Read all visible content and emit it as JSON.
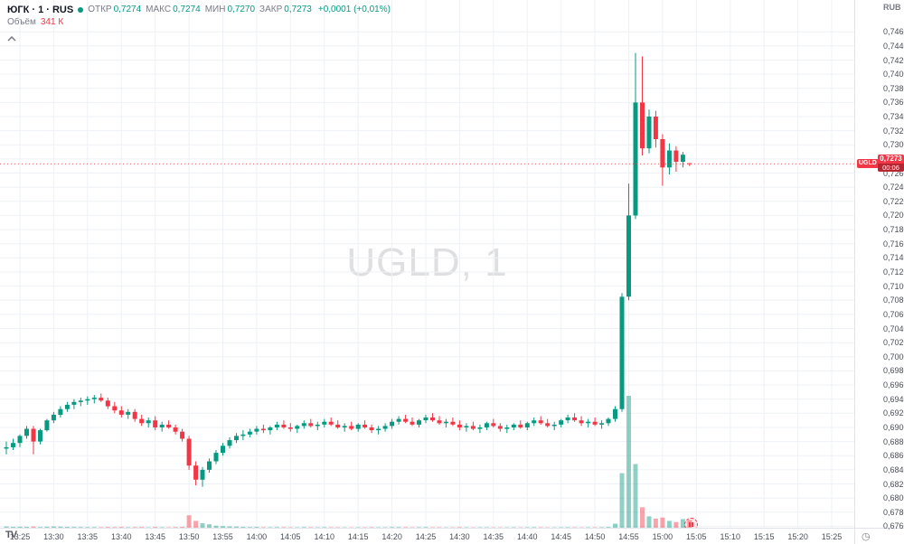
{
  "header": {
    "symbol_title": "ЮГК · 1 · RUS",
    "ohlc": {
      "open_label": "ОТКР",
      "open": "0,7274",
      "high_label": "МАКС",
      "high": "0,7274",
      "low_label": "МИН",
      "low": "0,7270",
      "close_label": "ЗАКР",
      "close": "0,7273",
      "change": "+0,0001 (+0,01%)"
    },
    "volume_label": "Объём",
    "volume_value": "341 К"
  },
  "watermark": "UGLD, 1",
  "branding": {
    "logo_text": "TV"
  },
  "icons": {
    "clock": "◷"
  },
  "price_tag": {
    "symbol": "UGLD",
    "price": "0,7273",
    "countdown": "00:06",
    "color": "#f23645"
  },
  "chart_data": {
    "type": "candlestick",
    "title": "UGLD, 1",
    "symbol": "UGLD",
    "interval": "1",
    "currency": "RUB",
    "ylim": [
      0.6758,
      0.7505
    ],
    "grid": true,
    "colors": {
      "up": "#089981",
      "down": "#f23645"
    },
    "y_ticks": [
      "0,7460",
      "0,7440",
      "0,7420",
      "0,7400",
      "0,7380",
      "0,7360",
      "0,7340",
      "0,7320",
      "0,7300",
      "0,7280",
      "0,7260",
      "0,7240",
      "0,7220",
      "0,7200",
      "0,7180",
      "0,7160",
      "0,7140",
      "0,7120",
      "0,7100",
      "0,7080",
      "0,7060",
      "0,7040",
      "0,7020",
      "0,7000",
      "0,6980",
      "0,6960",
      "0,6940",
      "0,6920",
      "0,6900",
      "0,6880",
      "0,6860",
      "0,6840",
      "0,6820",
      "0,6800",
      "0,6780",
      "0,6760"
    ],
    "x_ticks": [
      "13:25",
      "13:30",
      "13:35",
      "13:40",
      "13:45",
      "13:50",
      "13:55",
      "14:00",
      "14:05",
      "14:10",
      "14:15",
      "14:20",
      "14:25",
      "14:30",
      "14:35",
      "14:40",
      "14:45",
      "14:50",
      "14:55",
      "15:00",
      "15:05",
      "15:10",
      "15:15",
      "15:20",
      "15:25"
    ],
    "columns": [
      "time",
      "open",
      "high",
      "low",
      "close",
      "volume"
    ],
    "last_price": 0.7273,
    "candles": [
      [
        "13:23",
        0.687,
        0.688,
        0.6862,
        0.6872,
        50000
      ],
      [
        "13:24",
        0.6872,
        0.6884,
        0.6868,
        0.6878,
        40000
      ],
      [
        "13:25",
        0.6878,
        0.689,
        0.6872,
        0.6888,
        45000
      ],
      [
        "13:26",
        0.6888,
        0.6902,
        0.6884,
        0.6898,
        38000
      ],
      [
        "13:27",
        0.6898,
        0.6902,
        0.6862,
        0.688,
        52000
      ],
      [
        "13:28",
        0.688,
        0.6898,
        0.6876,
        0.6896,
        30000
      ],
      [
        "13:29",
        0.6896,
        0.6912,
        0.6894,
        0.691,
        42000
      ],
      [
        "13:30",
        0.691,
        0.6922,
        0.6906,
        0.6918,
        55000
      ],
      [
        "13:31",
        0.6918,
        0.693,
        0.6914,
        0.6926,
        48000
      ],
      [
        "13:32",
        0.6926,
        0.6936,
        0.6922,
        0.6932,
        40000
      ],
      [
        "13:33",
        0.6932,
        0.694,
        0.6926,
        0.6936,
        35000
      ],
      [
        "13:34",
        0.6936,
        0.6942,
        0.693,
        0.6938,
        30000
      ],
      [
        "13:35",
        0.6938,
        0.6944,
        0.6932,
        0.694,
        28000
      ],
      [
        "13:36",
        0.694,
        0.6946,
        0.6934,
        0.6942,
        26000
      ],
      [
        "13:37",
        0.6942,
        0.6948,
        0.6936,
        0.6938,
        24000
      ],
      [
        "13:38",
        0.6938,
        0.6942,
        0.6926,
        0.693,
        30000
      ],
      [
        "13:39",
        0.693,
        0.6936,
        0.692,
        0.6924,
        28000
      ],
      [
        "13:40",
        0.6924,
        0.693,
        0.6914,
        0.6918,
        32000
      ],
      [
        "13:41",
        0.6918,
        0.6926,
        0.6912,
        0.6922,
        22000
      ],
      [
        "13:42",
        0.6922,
        0.6926,
        0.6908,
        0.6912,
        26000
      ],
      [
        "13:43",
        0.6912,
        0.6918,
        0.6902,
        0.6906,
        30000
      ],
      [
        "13:44",
        0.6906,
        0.6914,
        0.69,
        0.691,
        20000
      ],
      [
        "13:45",
        0.691,
        0.6916,
        0.6896,
        0.69,
        34000
      ],
      [
        "13:46",
        0.69,
        0.6908,
        0.6894,
        0.6904,
        22000
      ],
      [
        "13:47",
        0.6904,
        0.691,
        0.6898,
        0.69,
        18000
      ],
      [
        "13:48",
        0.69,
        0.6904,
        0.689,
        0.6894,
        26000
      ],
      [
        "13:49",
        0.6894,
        0.6898,
        0.688,
        0.6884,
        40000
      ],
      [
        "13:50",
        0.6884,
        0.6888,
        0.684,
        0.6846,
        550000
      ],
      [
        "13:51",
        0.6846,
        0.6852,
        0.6818,
        0.6826,
        300000
      ],
      [
        "13:52",
        0.6826,
        0.6844,
        0.6816,
        0.684,
        200000
      ],
      [
        "13:53",
        0.684,
        0.6856,
        0.6836,
        0.6852,
        150000
      ],
      [
        "13:54",
        0.6852,
        0.6868,
        0.6848,
        0.6864,
        90000
      ],
      [
        "13:55",
        0.6864,
        0.6878,
        0.686,
        0.6874,
        70000
      ],
      [
        "13:56",
        0.6874,
        0.6886,
        0.687,
        0.6882,
        60000
      ],
      [
        "13:57",
        0.6882,
        0.6892,
        0.6878,
        0.6888,
        50000
      ],
      [
        "13:58",
        0.6888,
        0.6896,
        0.6882,
        0.689,
        40000
      ],
      [
        "13:59",
        0.689,
        0.6898,
        0.6886,
        0.6894,
        30000
      ],
      [
        "14:00",
        0.6894,
        0.6902,
        0.689,
        0.6898,
        35000
      ],
      [
        "14:01",
        0.6898,
        0.6904,
        0.6892,
        0.6896,
        25000
      ],
      [
        "14:02",
        0.6896,
        0.6902,
        0.689,
        0.69,
        22000
      ],
      [
        "14:03",
        0.69,
        0.6908,
        0.6896,
        0.6904,
        28000
      ],
      [
        "14:04",
        0.6904,
        0.691,
        0.6898,
        0.69,
        24000
      ],
      [
        "14:05",
        0.69,
        0.6906,
        0.6894,
        0.6898,
        20000
      ],
      [
        "14:06",
        0.6898,
        0.6904,
        0.6892,
        0.6902,
        18000
      ],
      [
        "14:07",
        0.6902,
        0.691,
        0.6898,
        0.6906,
        26000
      ],
      [
        "14:08",
        0.6906,
        0.6912,
        0.69,
        0.6902,
        22000
      ],
      [
        "14:09",
        0.6902,
        0.6908,
        0.6896,
        0.6904,
        19000
      ],
      [
        "14:10",
        0.6904,
        0.6912,
        0.69,
        0.6908,
        24000
      ],
      [
        "14:11",
        0.6908,
        0.6914,
        0.6902,
        0.6904,
        21000
      ],
      [
        "14:12",
        0.6904,
        0.691,
        0.6898,
        0.69,
        18000
      ],
      [
        "14:13",
        0.69,
        0.6906,
        0.6894,
        0.6902,
        17000
      ],
      [
        "14:14",
        0.6902,
        0.6908,
        0.6896,
        0.6898,
        16000
      ],
      [
        "14:15",
        0.6898,
        0.6906,
        0.6894,
        0.6904,
        20000
      ],
      [
        "14:16",
        0.6904,
        0.691,
        0.6898,
        0.69,
        18000
      ],
      [
        "14:17",
        0.69,
        0.6904,
        0.6892,
        0.6896,
        22000
      ],
      [
        "14:18",
        0.6896,
        0.6902,
        0.689,
        0.6898,
        19000
      ],
      [
        "14:19",
        0.6898,
        0.6906,
        0.6894,
        0.6902,
        21000
      ],
      [
        "14:20",
        0.6902,
        0.6912,
        0.6898,
        0.6908,
        26000
      ],
      [
        "14:21",
        0.6908,
        0.6916,
        0.6904,
        0.6912,
        28000
      ],
      [
        "14:22",
        0.6912,
        0.6918,
        0.6906,
        0.6908,
        22000
      ],
      [
        "14:23",
        0.6908,
        0.6914,
        0.6902,
        0.6904,
        18000
      ],
      [
        "14:24",
        0.6904,
        0.6912,
        0.69,
        0.691,
        24000
      ],
      [
        "14:25",
        0.691,
        0.6918,
        0.6906,
        0.6914,
        26000
      ],
      [
        "14:26",
        0.6914,
        0.692,
        0.6908,
        0.691,
        20000
      ],
      [
        "14:27",
        0.691,
        0.6916,
        0.6904,
        0.6906,
        18000
      ],
      [
        "14:28",
        0.6906,
        0.6912,
        0.69,
        0.6908,
        16000
      ],
      [
        "14:29",
        0.6908,
        0.6914,
        0.6902,
        0.6904,
        15000
      ],
      [
        "14:30",
        0.6904,
        0.691,
        0.6896,
        0.69,
        25000
      ],
      [
        "14:31",
        0.69,
        0.6906,
        0.6894,
        0.6902,
        19000
      ],
      [
        "14:32",
        0.6902,
        0.6908,
        0.6896,
        0.6898,
        16000
      ],
      [
        "14:33",
        0.6898,
        0.6904,
        0.6892,
        0.69,
        18000
      ],
      [
        "14:34",
        0.69,
        0.6908,
        0.6896,
        0.6906,
        20000
      ],
      [
        "14:35",
        0.6906,
        0.6912,
        0.69,
        0.6902,
        17000
      ],
      [
        "14:36",
        0.6902,
        0.6906,
        0.6894,
        0.6898,
        15000
      ],
      [
        "14:37",
        0.6898,
        0.6904,
        0.6892,
        0.69,
        16000
      ],
      [
        "14:38",
        0.69,
        0.6906,
        0.6896,
        0.6904,
        18000
      ],
      [
        "14:39",
        0.6904,
        0.691,
        0.6898,
        0.69,
        15000
      ],
      [
        "14:40",
        0.69,
        0.6908,
        0.6896,
        0.6906,
        19000
      ],
      [
        "14:41",
        0.6906,
        0.6914,
        0.6902,
        0.691,
        22000
      ],
      [
        "14:42",
        0.691,
        0.6916,
        0.6904,
        0.6906,
        18000
      ],
      [
        "14:43",
        0.6906,
        0.6912,
        0.69,
        0.6902,
        16000
      ],
      [
        "14:44",
        0.6902,
        0.6908,
        0.6896,
        0.6904,
        15000
      ],
      [
        "14:45",
        0.6904,
        0.6912,
        0.69,
        0.691,
        20000
      ],
      [
        "14:46",
        0.691,
        0.6918,
        0.6906,
        0.6914,
        24000
      ],
      [
        "14:47",
        0.6914,
        0.692,
        0.6908,
        0.691,
        19000
      ],
      [
        "14:48",
        0.691,
        0.6916,
        0.6902,
        0.6906,
        17000
      ],
      [
        "14:49",
        0.6906,
        0.6912,
        0.69,
        0.6908,
        18000
      ],
      [
        "14:50",
        0.6908,
        0.6914,
        0.6902,
        0.6904,
        20000
      ],
      [
        "14:51",
        0.6904,
        0.691,
        0.6898,
        0.6906,
        22000
      ],
      [
        "14:52",
        0.6906,
        0.6914,
        0.6902,
        0.6912,
        35000
      ],
      [
        "14:53",
        0.6912,
        0.693,
        0.6908,
        0.6926,
        180000
      ],
      [
        "14:54",
        0.6926,
        0.709,
        0.6922,
        0.7085,
        2400000
      ],
      [
        "14:55",
        0.7085,
        0.7245,
        0.708,
        0.72,
        5800000
      ],
      [
        "14:56",
        0.72,
        0.743,
        0.7195,
        0.736,
        2800000
      ],
      [
        "14:57",
        0.736,
        0.7425,
        0.7285,
        0.7295,
        900000
      ],
      [
        "14:58",
        0.7295,
        0.735,
        0.7288,
        0.734,
        500000
      ],
      [
        "14:59",
        0.734,
        0.7348,
        0.7296,
        0.7308,
        400000
      ],
      [
        "15:00",
        0.7308,
        0.7315,
        0.7242,
        0.7268,
        450000
      ],
      [
        "15:01",
        0.7268,
        0.7302,
        0.7258,
        0.7292,
        300000
      ],
      [
        "15:02",
        0.7292,
        0.7298,
        0.7262,
        0.7276,
        250000
      ],
      [
        "15:03",
        0.7276,
        0.729,
        0.7268,
        0.7286,
        380000
      ],
      [
        "15:04",
        0.7274,
        0.7274,
        0.727,
        0.7273,
        341000
      ]
    ]
  }
}
